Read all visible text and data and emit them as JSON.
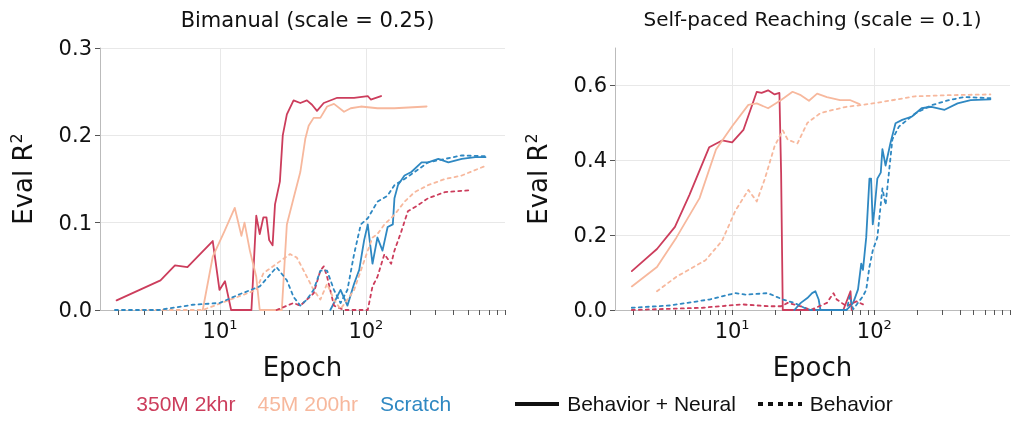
{
  "chart_data": [
    {
      "type": "line",
      "title": "Bimanual (scale = 0.25)",
      "xlabel": "Epoch",
      "ylabel": "Eval R$^{2}$",
      "log": "x",
      "grid": true,
      "legend": "bottom",
      "marker": "none",
      "xlim": [
        1.5,
        900
      ],
      "ylim": [
        0,
        0.3
      ],
      "xticks": [
        {
          "value": 2,
          "label": null
        },
        {
          "value": 3,
          "label": null
        },
        {
          "value": 4,
          "label": null
        },
        {
          "value": 5,
          "label": null
        },
        {
          "value": 6,
          "label": null
        },
        {
          "value": 7,
          "label": null
        },
        {
          "value": 8,
          "label": null
        },
        {
          "value": 9,
          "label": null
        },
        {
          "value": 10,
          "label": "10$^{1}$"
        },
        {
          "value": 20,
          "label": null
        },
        {
          "value": 30,
          "label": null
        },
        {
          "value": 40,
          "label": null
        },
        {
          "value": 50,
          "label": null
        },
        {
          "value": 60,
          "label": null
        },
        {
          "value": 70,
          "label": null
        },
        {
          "value": 80,
          "label": null
        },
        {
          "value": 90,
          "label": null
        },
        {
          "value": 100,
          "label": "10$^{2}$"
        },
        {
          "value": 200,
          "label": null
        },
        {
          "value": 300,
          "label": null
        },
        {
          "value": 400,
          "label": null
        },
        {
          "value": 500,
          "label": null
        },
        {
          "value": 600,
          "label": null
        },
        {
          "value": 700,
          "label": null
        },
        {
          "value": 800,
          "label": null
        },
        {
          "value": 900,
          "label": null
        }
      ],
      "yticks": [
        {
          "value": 0,
          "label": "0.0"
        },
        {
          "value": 0.1,
          "label": "0.1"
        },
        {
          "value": 0.2,
          "label": "0.2"
        },
        {
          "value": 0.3,
          "label": "0.3"
        }
      ],
      "annotations": [
        "Behavior + Neural",
        "Behavior"
      ],
      "series": [
        {
          "name": "350M 2khr",
          "color": "#cc3d5c",
          "line_style": "solid",
          "x": [
            1.95,
            3.9,
            4.9,
            5.97,
            8.9,
            9.9,
            10.8,
            11.9,
            16.4,
            17.7,
            18.7,
            19.8,
            20.8,
            21.7,
            22.9,
            23.8,
            25.7,
            26.9,
            28.7,
            31.9,
            35.5,
            39.4,
            42.7,
            46.2,
            51.4,
            63.6,
            83,
            103,
            108,
            127
          ],
          "values": [
            0.011,
            0.034,
            0.051,
            0.049,
            0.079,
            0.023,
            0.033,
            0,
            0,
            0.108,
            0.087,
            0.106,
            0.106,
            0.08,
            0.074,
            0.121,
            0.147,
            0.2,
            0.224,
            0.24,
            0.237,
            0.24,
            0.235,
            0.228,
            0.237,
            0.243,
            0.243,
            0.245,
            0.241,
            0.245
          ]
        },
        {
          "name": "45M 200hr",
          "color": "#f7b89d",
          "line_style": "solid",
          "x": [
            7.6,
            8.9,
            10.7,
            12.6,
            14.0,
            14.7,
            16.0,
            17.7,
            18.7,
            26.5,
            28.7,
            31.9,
            35.5,
            38.4,
            40.5,
            43.8,
            48.7,
            54.2,
            60.4,
            70.8,
            78.7,
            92.3,
            120,
            157,
            261
          ],
          "values": [
            0,
            0.061,
            0.09,
            0.117,
            0.085,
            0.1,
            0.068,
            0.038,
            0,
            0,
            0.098,
            0.128,
            0.158,
            0.196,
            0.211,
            0.22,
            0.22,
            0.233,
            0.236,
            0.227,
            0.231,
            0.233,
            0.231,
            0.231,
            0.233
          ]
        },
        {
          "name": "Scratch",
          "color": "#2f88c2",
          "line_style": "solid",
          "x": [
            57,
            60.4,
            67,
            74.7,
            83,
            90,
            97.3,
            103,
            111,
            120,
            130,
            141,
            153,
            157,
            166,
            184,
            205,
            241,
            267,
            314,
            368,
            455,
            563,
            661
          ],
          "values": [
            0,
            0.008,
            0.023,
            0.005,
            0.03,
            0.046,
            0.08,
            0.098,
            0.053,
            0.083,
            0.068,
            0.095,
            0.098,
            0.128,
            0.143,
            0.154,
            0.158,
            0.169,
            0.169,
            0.173,
            0.169,
            0.173,
            0.175,
            0.175
          ]
        },
        {
          "color": "#cc3d5c",
          "line_style": "dotted",
          "x": [
            24.4,
            31.9,
            35.5,
            39.4,
            43.8,
            48.7,
            51.4,
            54.2,
            60.4,
            70.8,
            103,
            111,
            120,
            134,
            149,
            157,
            175,
            194,
            228,
            267,
            349,
            506
          ],
          "values": [
            0,
            0.008,
            0.005,
            0.012,
            0.019,
            0.045,
            0.05,
            0.038,
            0.005,
            0,
            0,
            0.027,
            0.038,
            0.064,
            0.053,
            0.068,
            0.09,
            0.113,
            0.12,
            0.128,
            0.135,
            0.137
          ]
        },
        {
          "color": "#f7b89d",
          "line_style": "dotted",
          "x": [
            2.9,
            7.6,
            17.7,
            19.8,
            24.4,
            30.2,
            33.6,
            39.4,
            43.8,
            48.7,
            54.2,
            60.4,
            67,
            74.7,
            83,
            92.3,
            103,
            111,
            120,
            134,
            157,
            184,
            216,
            267,
            349,
            455,
            661
          ],
          "values": [
            0,
            0,
            0.023,
            0.042,
            0.053,
            0.064,
            0.06,
            0.038,
            0.023,
            0.012,
            0.03,
            0.012,
            0.001,
            0.012,
            0.023,
            0.045,
            0.068,
            0.083,
            0.087,
            0.098,
            0.109,
            0.124,
            0.135,
            0.143,
            0.15,
            0.154,
            0.165
          ]
        },
        {
          "color": "#2f88c2",
          "line_style": "dotted",
          "x": [
            1.9,
            3.8,
            6.5,
            9.9,
            13.6,
            18.7,
            24.4,
            28.7,
            31.9,
            35.5,
            39.4,
            43.8,
            48.7,
            54.2,
            60.4,
            67,
            74.7,
            83,
            92.3,
            103,
            120,
            141,
            157,
            184,
            216,
            267,
            349,
            455,
            661
          ],
          "values": [
            0,
            0,
            0.006,
            0.008,
            0.018,
            0.027,
            0.049,
            0.034,
            0.015,
            0.005,
            0.012,
            0.023,
            0.045,
            0.045,
            0.023,
            0.008,
            0.023,
            0.064,
            0.098,
            0.105,
            0.124,
            0.131,
            0.143,
            0.15,
            0.158,
            0.169,
            0.173,
            0.177,
            0.176
          ]
        }
      ]
    },
    {
      "type": "line",
      "title": "Self-paced Reaching (scale = 0.1)",
      "xlabel": "Epoch",
      "ylabel": "Eval R$^{2}$",
      "log": "x",
      "grid": true,
      "marker": "none",
      "xlim": [
        1.5,
        900
      ],
      "ylim": [
        0,
        0.7
      ],
      "xticks": [
        {
          "value": 2,
          "label": null
        },
        {
          "value": 3,
          "label": null
        },
        {
          "value": 4,
          "label": null
        },
        {
          "value": 5,
          "label": null
        },
        {
          "value": 6,
          "label": null
        },
        {
          "value": 7,
          "label": null
        },
        {
          "value": 8,
          "label": null
        },
        {
          "value": 9,
          "label": null
        },
        {
          "value": 10,
          "label": "10$^{1}$"
        },
        {
          "value": 20,
          "label": null
        },
        {
          "value": 30,
          "label": null
        },
        {
          "value": 40,
          "label": null
        },
        {
          "value": 50,
          "label": null
        },
        {
          "value": 60,
          "label": null
        },
        {
          "value": 70,
          "label": null
        },
        {
          "value": 80,
          "label": null
        },
        {
          "value": 90,
          "label": null
        },
        {
          "value": 100,
          "label": "10$^{2}$"
        },
        {
          "value": 200,
          "label": null
        },
        {
          "value": 300,
          "label": null
        },
        {
          "value": 400,
          "label": null
        },
        {
          "value": 500,
          "label": null
        },
        {
          "value": 600,
          "label": null
        },
        {
          "value": 700,
          "label": null
        },
        {
          "value": 800,
          "label": null
        },
        {
          "value": 900,
          "label": null
        }
      ],
      "yticks": [
        {
          "value": 0,
          "label": "0.0"
        },
        {
          "value": 0.2,
          "label": "0.2"
        },
        {
          "value": 0.4,
          "label": "0.4"
        },
        {
          "value": 0.6,
          "label": "0.6"
        }
      ],
      "series": [
        {
          "color": "#cc3d5c",
          "line_style": "solid",
          "x": [
            1.97,
            2.96,
            3.96,
            5.0,
            6.9,
            8.5,
            10,
            12.0,
            14.9,
            16.1,
            17.9,
            19.9,
            21.5,
            22.1,
            22.7,
            60.5,
            68,
            69.3
          ],
          "values": [
            0.104,
            0.163,
            0.222,
            0.307,
            0.435,
            0.453,
            0.448,
            0.481,
            0.583,
            0.58,
            0.587,
            0.576,
            0.58,
            0.367,
            0,
            0,
            0.05,
            0
          ]
        },
        {
          "color": "#f7b89d",
          "line_style": "solid",
          "x": [
            1.97,
            2.96,
            4.06,
            5.9,
            7.7,
            10,
            13.0,
            14.9,
            17.9,
            22.1,
            26.6,
            30.4,
            34.7,
            39.6,
            46.4,
            57.4,
            67.3,
            78.8
          ],
          "values": [
            0.063,
            0.115,
            0.194,
            0.299,
            0.429,
            0.491,
            0.548,
            0.552,
            0.539,
            0.561,
            0.583,
            0.574,
            0.559,
            0.578,
            0.569,
            0.561,
            0.561,
            0.55
          ]
        },
        {
          "color": "#2f88c2",
          "line_style": "solid",
          "x": [
            27.4,
            30.4,
            33.8,
            36.5,
            38.5,
            40.6,
            41.8,
            63.8,
            71,
            76.8,
            80.9,
            83.2,
            87.7,
            92.4,
            94.9,
            97.5,
            100,
            105,
            111,
            114,
            120,
            130,
            141,
            157,
            184,
            215,
            252,
            312,
            385,
            476,
            655
          ],
          "values": [
            0,
            0.019,
            0.032,
            0.045,
            0.05,
            0.028,
            0,
            0,
            0.019,
            0.055,
            0.124,
            0.107,
            0.194,
            0.351,
            0.351,
            0.229,
            0.264,
            0.351,
            0.367,
            0.43,
            0.386,
            0.447,
            0.499,
            0.508,
            0.517,
            0.539,
            0.543,
            0.535,
            0.552,
            0.561,
            0.563
          ]
        },
        {
          "color": "#cc3d5c",
          "line_style": "dotted",
          "x": [
            1.97,
            6.2,
            11.7,
            17.9,
            22.1,
            24.6,
            30.4,
            35.6,
            46.4,
            51.6,
            54.4,
            63.8,
            74.8,
            83.2
          ],
          "values": [
            0,
            0.006,
            0.015,
            0.01,
            0.01,
            0.019,
            0.01,
            0,
            0.019,
            0.045,
            0.028,
            0.01,
            0.023,
            0.015
          ]
        },
        {
          "color": "#f7b89d",
          "line_style": "dotted",
          "x": [
            2.96,
            4.06,
            6.5,
            8.5,
            10.5,
            13,
            14.9,
            17.0,
            19.9,
            22.7,
            24.6,
            28.8,
            33.8,
            41.8,
            51.6,
            63.8,
            83.2,
            114,
            194,
            329,
            655
          ],
          "values": [
            0.05,
            0.089,
            0.133,
            0.185,
            0.264,
            0.321,
            0.29,
            0.351,
            0.438,
            0.48,
            0.455,
            0.445,
            0.5,
            0.526,
            0.535,
            0.543,
            0.548,
            0.556,
            0.571,
            0.574,
            0.576
          ]
        },
        {
          "color": "#2f88c2",
          "line_style": "dotted",
          "x": [
            1.97,
            3.65,
            6.9,
            10.5,
            12.4,
            17.9,
            22.7,
            27.4,
            32.1,
            35.6,
            63.8,
            67.3,
            71,
            83.2,
            87.7,
            92.4,
            97.5,
            105,
            114,
            120,
            134,
            149,
            194,
            252,
            329,
            428,
            655
          ],
          "values": [
            0.006,
            0.012,
            0.028,
            0.045,
            0.041,
            0.045,
            0.028,
            0.019,
            0.006,
            0,
            0,
            0.037,
            0.002,
            0.037,
            0.054,
            0.115,
            0.159,
            0.194,
            0.325,
            0.281,
            0.456,
            0.49,
            0.525,
            0.547,
            0.56,
            0.569,
            0.566
          ]
        }
      ]
    }
  ]
}
